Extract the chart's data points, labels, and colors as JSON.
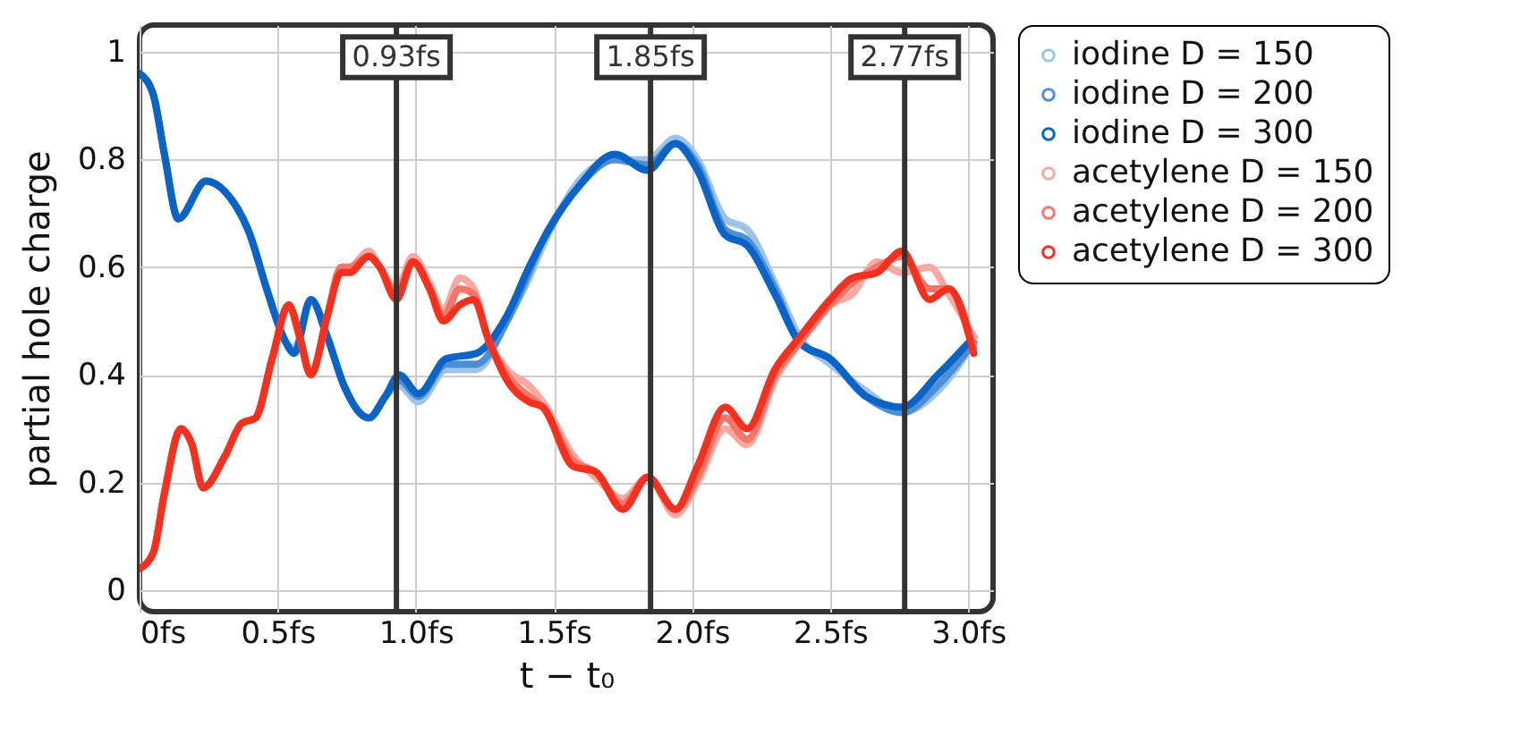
{
  "chart_data": {
    "type": "line",
    "xlabel": "t − t₀",
    "ylabel": "partial hole charge",
    "xlim": [
      0,
      3.09
    ],
    "ylim": [
      -0.04,
      1.05
    ],
    "xticks": [
      {
        "value": 0,
        "label": "0fs"
      },
      {
        "value": 0.5,
        "label": "0.5fs"
      },
      {
        "value": 1,
        "label": "1.0fs"
      },
      {
        "value": 1.5,
        "label": "1.5fs"
      },
      {
        "value": 2,
        "label": "2.0fs"
      },
      {
        "value": 2.5,
        "label": "2.5fs"
      },
      {
        "value": 3,
        "label": "3.0fs"
      }
    ],
    "yticks": [
      0,
      0.2,
      0.4,
      0.6,
      0.8,
      1
    ],
    "grid": true,
    "legend": "right",
    "marker": "none",
    "line_style": "solid",
    "ref_lines": [
      {
        "axis": "x",
        "value": 0.93,
        "label": "0.93fs",
        "color": "#333333"
      },
      {
        "axis": "x",
        "value": 1.85,
        "label": "1.85fs",
        "color": "#333333"
      },
      {
        "axis": "x",
        "value": 2.77,
        "label": "2.77fs",
        "color": "#333333"
      }
    ],
    "series": [
      {
        "name": "iodine D = 150",
        "color": "#9cc3e8",
        "x": [
          0,
          0.05,
          0.09,
          0.14,
          0.24,
          0.31,
          0.4,
          0.46,
          0.53,
          0.56,
          0.62,
          0.68,
          0.74,
          0.83,
          0.89,
          0.94,
          1.01,
          1.11,
          1.22,
          1.33,
          1.41,
          1.46,
          1.59,
          1.72,
          1.84,
          1.94,
          2.02,
          2.12,
          2.2,
          2.3,
          2.39,
          2.5,
          2.63,
          2.76,
          2.89,
          3.02
        ],
        "values": [
          0.96,
          0.92,
          0.81,
          0.69,
          0.76,
          0.74,
          0.66,
          0.56,
          0.46,
          0.45,
          0.54,
          0.47,
          0.38,
          0.32,
          0.36,
          0.38,
          0.35,
          0.41,
          0.41,
          0.5,
          0.58,
          0.64,
          0.76,
          0.8,
          0.8,
          0.84,
          0.8,
          0.69,
          0.67,
          0.57,
          0.47,
          0.42,
          0.37,
          0.33,
          0.37,
          0.46
        ]
      },
      {
        "name": "iodine D = 200",
        "color": "#4d8fd6",
        "x": [
          0,
          0.05,
          0.09,
          0.14,
          0.24,
          0.31,
          0.4,
          0.46,
          0.53,
          0.56,
          0.62,
          0.68,
          0.74,
          0.83,
          0.89,
          0.94,
          1.01,
          1.11,
          1.22,
          1.33,
          1.41,
          1.46,
          1.59,
          1.72,
          1.84,
          1.94,
          2.02,
          2.12,
          2.2,
          2.3,
          2.39,
          2.5,
          2.63,
          2.76,
          2.89,
          3.02
        ],
        "values": [
          0.96,
          0.92,
          0.81,
          0.69,
          0.76,
          0.74,
          0.66,
          0.56,
          0.46,
          0.44,
          0.54,
          0.47,
          0.38,
          0.32,
          0.36,
          0.39,
          0.36,
          0.42,
          0.42,
          0.5,
          0.59,
          0.65,
          0.75,
          0.8,
          0.79,
          0.83,
          0.79,
          0.67,
          0.65,
          0.56,
          0.46,
          0.43,
          0.36,
          0.33,
          0.38,
          0.46
        ]
      },
      {
        "name": "iodine D = 300",
        "color": "#0a64c8",
        "x": [
          0,
          0.05,
          0.09,
          0.14,
          0.24,
          0.31,
          0.4,
          0.46,
          0.53,
          0.56,
          0.62,
          0.68,
          0.74,
          0.83,
          0.89,
          0.94,
          1.01,
          1.11,
          1.22,
          1.33,
          1.41,
          1.46,
          1.59,
          1.72,
          1.84,
          1.94,
          2.02,
          2.12,
          2.2,
          2.3,
          2.39,
          2.5,
          2.63,
          2.76,
          2.89,
          3.02
        ],
        "values": [
          0.96,
          0.92,
          0.81,
          0.69,
          0.76,
          0.74,
          0.66,
          0.56,
          0.46,
          0.44,
          0.54,
          0.47,
          0.38,
          0.32,
          0.36,
          0.4,
          0.365,
          0.43,
          0.44,
          0.51,
          0.6,
          0.65,
          0.75,
          0.81,
          0.78,
          0.83,
          0.78,
          0.66,
          0.64,
          0.55,
          0.46,
          0.43,
          0.36,
          0.34,
          0.4,
          0.47
        ]
      },
      {
        "name": "acetylene D = 150",
        "color": "#f7a8a0",
        "x": [
          0,
          0.05,
          0.09,
          0.15,
          0.19,
          0.23,
          0.31,
          0.37,
          0.42,
          0.48,
          0.54,
          0.58,
          0.62,
          0.68,
          0.73,
          0.76,
          0.83,
          0.87,
          0.93,
          0.99,
          1.05,
          1.1,
          1.16,
          1.21,
          1.26,
          1.33,
          1.41,
          1.46,
          1.57,
          1.65,
          1.75,
          1.84,
          1.94,
          2.02,
          2.12,
          2.2,
          2.3,
          2.39,
          2.5,
          2.58,
          2.67,
          2.76,
          2.86,
          2.93,
          3.02
        ],
        "values": [
          0.04,
          0.07,
          0.18,
          0.3,
          0.27,
          0.19,
          0.25,
          0.31,
          0.32,
          0.43,
          0.53,
          0.47,
          0.4,
          0.51,
          0.6,
          0.6,
          0.63,
          0.6,
          0.56,
          0.62,
          0.57,
          0.52,
          0.58,
          0.56,
          0.47,
          0.41,
          0.38,
          0.35,
          0.25,
          0.21,
          0.17,
          0.21,
          0.14,
          0.2,
          0.3,
          0.27,
          0.39,
          0.46,
          0.53,
          0.55,
          0.61,
          0.59,
          0.6,
          0.55,
          0.47
        ]
      },
      {
        "name": "acetylene D = 200",
        "color": "#f5756a",
        "x": [
          0,
          0.05,
          0.09,
          0.15,
          0.19,
          0.23,
          0.31,
          0.37,
          0.42,
          0.48,
          0.54,
          0.58,
          0.62,
          0.68,
          0.73,
          0.76,
          0.83,
          0.87,
          0.93,
          0.99,
          1.05,
          1.1,
          1.16,
          1.21,
          1.26,
          1.33,
          1.41,
          1.46,
          1.57,
          1.65,
          1.75,
          1.84,
          1.94,
          2.02,
          2.12,
          2.2,
          2.3,
          2.39,
          2.5,
          2.58,
          2.67,
          2.76,
          2.86,
          2.93,
          3.02
        ],
        "values": [
          0.04,
          0.07,
          0.18,
          0.3,
          0.27,
          0.19,
          0.25,
          0.31,
          0.32,
          0.43,
          0.53,
          0.47,
          0.4,
          0.51,
          0.6,
          0.6,
          0.62,
          0.6,
          0.55,
          0.61,
          0.56,
          0.51,
          0.56,
          0.55,
          0.47,
          0.4,
          0.36,
          0.34,
          0.24,
          0.22,
          0.16,
          0.21,
          0.15,
          0.21,
          0.32,
          0.28,
          0.4,
          0.46,
          0.53,
          0.57,
          0.6,
          0.62,
          0.56,
          0.56,
          0.45
        ]
      },
      {
        "name": "acetylene D = 300",
        "color": "#f5301e",
        "x": [
          0,
          0.05,
          0.09,
          0.15,
          0.19,
          0.23,
          0.31,
          0.37,
          0.42,
          0.48,
          0.54,
          0.58,
          0.62,
          0.68,
          0.73,
          0.76,
          0.83,
          0.87,
          0.93,
          0.99,
          1.05,
          1.1,
          1.16,
          1.21,
          1.26,
          1.33,
          1.41,
          1.46,
          1.57,
          1.65,
          1.75,
          1.84,
          1.94,
          2.02,
          2.12,
          2.2,
          2.3,
          2.39,
          2.5,
          2.58,
          2.67,
          2.76,
          2.86,
          2.93,
          3.02
        ],
        "values": [
          0.04,
          0.07,
          0.18,
          0.3,
          0.27,
          0.19,
          0.25,
          0.31,
          0.32,
          0.43,
          0.53,
          0.47,
          0.4,
          0.51,
          0.59,
          0.59,
          0.62,
          0.6,
          0.54,
          0.61,
          0.56,
          0.5,
          0.53,
          0.54,
          0.47,
          0.39,
          0.35,
          0.34,
          0.23,
          0.22,
          0.15,
          0.21,
          0.15,
          0.23,
          0.34,
          0.3,
          0.41,
          0.47,
          0.54,
          0.58,
          0.59,
          0.63,
          0.54,
          0.56,
          0.44
        ]
      }
    ]
  }
}
